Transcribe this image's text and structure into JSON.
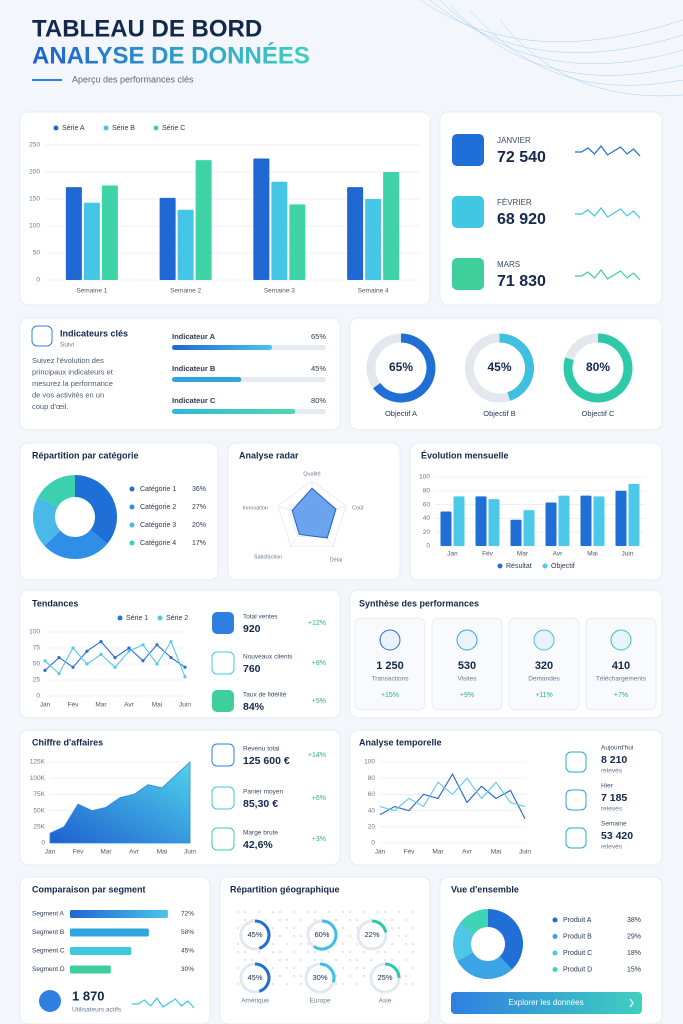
{
  "header": {
    "title": "TABLEAU DE BORD",
    "title_highlight": "ANALYSE DE DONNÉES",
    "subtitle": "Aperçu des performances clés"
  },
  "chart_data": [
    {
      "type": "bar",
      "categories": [
        "Semaine 1",
        "Semaine 2",
        "Semaine 3",
        "Semaine 4"
      ],
      "series": [
        {
          "name": "Série A",
          "color": "#1f67d2",
          "values": [
            172,
            152,
            225,
            172
          ]
        },
        {
          "name": "Série B",
          "color": "#45c6e6",
          "values": [
            143,
            130,
            182,
            150
          ]
        },
        {
          "name": "Série C",
          "color": "#3fd3a8",
          "values": [
            175,
            222,
            140,
            200
          ]
        }
      ],
      "ylim": [
        0,
        250
      ],
      "yticks": [
        0,
        50,
        100,
        150,
        200,
        250
      ],
      "grid": true,
      "legend": "top-left"
    },
    {
      "type": "pie",
      "title": "Répartition par catégorie",
      "categories": [
        "Catégorie 1",
        "Catégorie 2",
        "Catégorie 3",
        "Catégorie 4"
      ],
      "values": [
        36,
        27,
        20,
        17
      ],
      "value_labels": [
        "36%",
        "27%",
        "20%",
        "17%"
      ],
      "colors": [
        "#1f6fd6",
        "#2f8fe6",
        "#4ab8e8",
        "#3ccfb0"
      ],
      "legend": "right"
    },
    {
      "type": "radar",
      "title": "Analyse radar",
      "categories": [
        "Qualité",
        "Coût",
        "Délai",
        "Satisfaction",
        "Innovation"
      ],
      "values": [
        80,
        70,
        72,
        60,
        58
      ],
      "rlim": [
        0,
        100
      ],
      "color": "#3b86e8"
    },
    {
      "type": "bar",
      "title": "Évolution mensuelle",
      "categories": [
        "Jan",
        "Fév",
        "Mar",
        "Avr",
        "Mai",
        "Juin"
      ],
      "series": [
        {
          "name": "Résultat",
          "color": "#1f6fd6",
          "values": [
            50,
            72,
            38,
            63,
            73,
            80
          ]
        },
        {
          "name": "Objectif",
          "color": "#4cc9e8",
          "values": [
            72,
            68,
            52,
            73,
            72,
            90
          ]
        }
      ],
      "ylim": [
        0,
        100
      ],
      "yticks": [
        0,
        20,
        40,
        60,
        80,
        100
      ],
      "grid": true,
      "legend": "bottom"
    },
    {
      "type": "line",
      "title": "Tendances",
      "categories": [
        "Jan",
        null,
        "Fév",
        null,
        "Mar",
        null,
        "Avr",
        null,
        "Mai",
        null,
        "Juin"
      ],
      "series": [
        {
          "name": "Série 1",
          "color": "#2a6fd1",
          "values": [
            40,
            60,
            45,
            70,
            85,
            60,
            75,
            55,
            80,
            60,
            45
          ]
        },
        {
          "name": "Série 2",
          "color": "#58c8ea",
          "values": [
            55,
            35,
            75,
            50,
            65,
            45,
            70,
            80,
            50,
            85,
            30
          ]
        }
      ],
      "ylim": [
        0,
        100
      ],
      "yticks": [
        0,
        25,
        50,
        75,
        100
      ],
      "grid": true,
      "legend": "top",
      "markers": true
    },
    {
      "type": "area",
      "title": "Chiffre d'affaires",
      "categories": [
        "Jan",
        null,
        "Fév",
        null,
        "Mar",
        null,
        "Avr",
        null,
        "Mai",
        null,
        "Juin"
      ],
      "values": [
        15000,
        25000,
        60000,
        50000,
        55000,
        70000,
        75000,
        90000,
        85000,
        105000,
        125000
      ],
      "color": "#2d86e0",
      "ylim": [
        0,
        125000
      ],
      "yticks": [
        0,
        {
          "value": 25000,
          "label": "25K"
        },
        {
          "value": 50000,
          "label": "50K"
        },
        {
          "value": 75000,
          "label": "75K"
        },
        {
          "value": 100000,
          "label": "100K"
        },
        {
          "value": 125000,
          "label": "125K"
        }
      ],
      "grid": true
    },
    {
      "type": "line",
      "title": "Analyse temporelle",
      "categories": [
        "Jan",
        null,
        "Fév",
        null,
        "Mar",
        null,
        "Avr",
        null,
        "Mai",
        null,
        "Juin"
      ],
      "series": [
        {
          "color": "#2a62c9",
          "values": [
            35,
            45,
            40,
            60,
            55,
            85,
            50,
            70,
            55,
            65,
            30
          ]
        },
        {
          "color": "#5ccbe8",
          "values": [
            45,
            40,
            55,
            45,
            75,
            60,
            80,
            55,
            75,
            50,
            45
          ]
        }
      ],
      "ylim": [
        0,
        100
      ],
      "yticks": [
        0,
        20,
        40,
        60,
        80,
        100
      ],
      "grid": true
    },
    {
      "type": "pie",
      "title": "Vue d'ensemble",
      "categories": [
        "Produit A",
        "Produit B",
        "Produit C",
        "Produit D"
      ],
      "values": [
        38,
        29,
        18,
        15
      ],
      "value_labels": [
        "38%",
        "29%",
        "18%",
        "15%"
      ],
      "colors": [
        "#1f6fd6",
        "#3aa4e6",
        "#4fc6e6",
        "#3fd3b5"
      ],
      "legend": "right"
    }
  ],
  "month_kpis": [
    {
      "label": "JANVIER",
      "value": "72 540"
    },
    {
      "label": "FÉVRIER",
      "value": "68 920"
    },
    {
      "label": "MARS",
      "value": "71 830"
    }
  ],
  "indicators": {
    "title": "Indicateurs clés",
    "subtitle": "Suivi",
    "description": [
      "Suivez l'évolution des",
      "principaux indicateurs et",
      "mesurez la performance",
      "de vos activités en un",
      "coup d'œil."
    ],
    "items": [
      {
        "label": "Indicateur A",
        "value": 65,
        "value_label": "65%"
      },
      {
        "label": "Indicateur B",
        "value": 45,
        "value_label": "45%"
      },
      {
        "label": "Indicateur C",
        "value": 80,
        "value_label": "80%"
      }
    ]
  },
  "objectives": [
    {
      "label": "Objectif A",
      "value": 65,
      "value_label": "65%"
    },
    {
      "label": "Objectif B",
      "value": 45,
      "value_label": "45%"
    },
    {
      "label": "Objectif C",
      "value": 80,
      "value_label": "80%"
    }
  ],
  "sales_kpis": [
    {
      "label": "Total ventes",
      "value": "920",
      "change": "+12%"
    },
    {
      "label": "Nouveaux clients",
      "value": "760",
      "change": "+8%"
    },
    {
      "label": "Taux de fidélité",
      "value": "84%",
      "change": "+5%"
    }
  ],
  "synthesis": {
    "title": "Synthèse des performances",
    "items": [
      {
        "value": "1 250",
        "label": "Transactions",
        "change": "+15%"
      },
      {
        "value": "530",
        "label": "Visites",
        "change": "+9%"
      },
      {
        "value": "320",
        "label": "Demandes",
        "change": "+11%"
      },
      {
        "value": "410",
        "label": "Téléchargements",
        "change": "+7%"
      }
    ]
  },
  "revenue_kpis": [
    {
      "label": "Revenu total",
      "value": "125 600 €",
      "change": "+14%"
    },
    {
      "label": "Panier moyen",
      "value": "85,30 €",
      "change": "+6%"
    },
    {
      "label": "Marge brute",
      "value": "42,6%",
      "change": "+3%"
    }
  ],
  "time_kpis": [
    {
      "label": "Aujourd'hui",
      "value": "8 210",
      "unit": "relevés"
    },
    {
      "label": "Hier",
      "value": "7 185",
      "unit": "relevés"
    },
    {
      "label": "Semaine",
      "value": "53 420",
      "unit": "relevés"
    }
  ],
  "segments": {
    "title": "Comparaison par segment",
    "items": [
      {
        "label": "Segment A",
        "value": 72,
        "value_label": "72%"
      },
      {
        "label": "Segment B",
        "value": 58,
        "value_label": "58%"
      },
      {
        "label": "Segment C",
        "value": 45,
        "value_label": "45%"
      },
      {
        "label": "Segment D",
        "value": 30,
        "value_label": "30%"
      }
    ],
    "users": {
      "value": "1 870",
      "label": "Utilisateurs actifs"
    }
  },
  "geo": {
    "title": "Répartition géographique",
    "items": [
      {
        "value": 45,
        "value_label": "45%"
      },
      {
        "value": 60,
        "value_label": "60%"
      },
      {
        "value": 22,
        "value_label": "22%"
      },
      {
        "value": 45,
        "value_label": "45%"
      },
      {
        "value": 30,
        "value_label": "30%"
      },
      {
        "value": 25,
        "value_label": "25%"
      }
    ],
    "regions": [
      "Amérique",
      "Europe",
      "Asie"
    ]
  },
  "overview_button": "Explorer les données"
}
